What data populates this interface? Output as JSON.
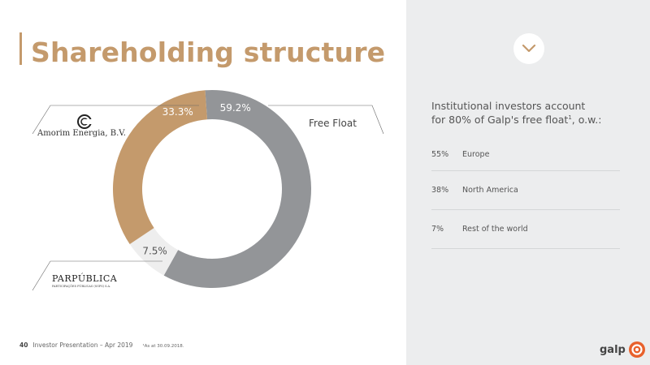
{
  "slide": {
    "title": "Shareholding structure",
    "footer": {
      "page_number": "40",
      "presentation": "Investor Presentation – Apr 2019",
      "note": "¹As at 30.09.2018."
    },
    "brand": "galp",
    "colors": {
      "accent": "#c49a6c",
      "grey": "#939598",
      "light": "#eeeeee",
      "panel": "#ecedee"
    }
  },
  "logos": {
    "amorim": "Amorim Energia, B.V.",
    "parpublica_name": "PARPÚBLICA",
    "parpublica_sub": "PARTICIPAÇÕES PÚBLICAS (SGPS) S.A."
  },
  "chart_data": {
    "type": "pie",
    "subtype": "donut",
    "slices": [
      {
        "label": "Free Float",
        "value": 59.2,
        "display": "59.2%",
        "color": "#939598"
      },
      {
        "label": "PARPÚBLICA",
        "value": 7.5,
        "display": "7.5%",
        "color": "#eeeeee"
      },
      {
        "label": "Amorim Energia, B.V.",
        "value": 33.3,
        "display": "33.3%",
        "color": "#c49a6c"
      }
    ]
  },
  "panel": {
    "heading_line1": "Institutional investors account",
    "heading_line2": "for 80% of Galp's free float",
    "heading_sup": "1",
    "heading_end": ", o.w.:",
    "breakdown": [
      {
        "pct": "55%",
        "label": "Europe"
      },
      {
        "pct": "38%",
        "label": "North America"
      },
      {
        "pct": "7%",
        "label": "Rest of the world"
      }
    ]
  }
}
